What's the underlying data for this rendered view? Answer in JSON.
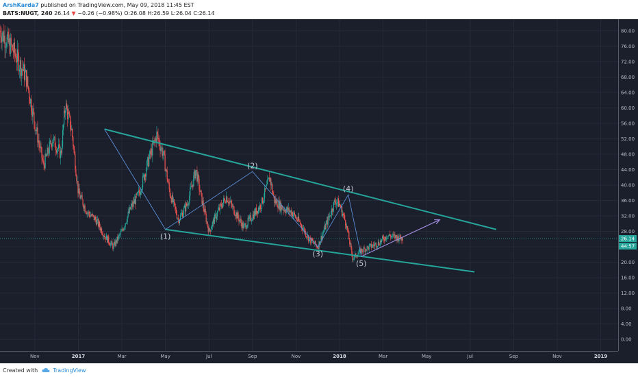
{
  "header": {
    "author": "ArshKarda7",
    "published": "published on TradingView.com, May 09, 2018 11:45 EST",
    "symbol": "BATS:NUGT, 240",
    "last": "26.14",
    "change_arrow": "▼",
    "change": "−0.26 (−0.98%)",
    "ohlc_o": "O:26.08",
    "ohlc_h": "H:26.59",
    "ohlc_l": "L:26.04",
    "ohlc_c": "C:26.14"
  },
  "footer": {
    "created_with": "Created with",
    "brand": "TradingView"
  },
  "colors": {
    "background": "#1b1e2b",
    "trendline": "#26a69a",
    "wave_line": "#5b8fd6",
    "projection_arrow": "#9c8ad8",
    "up_candle": "#26a69a",
    "down_candle": "#ef5350",
    "price_badge": "#26a69a"
  },
  "price_badges": [
    "26.14",
    "44:57"
  ],
  "chart_data": {
    "type": "candlestick",
    "y_ticks": [
      "80.00",
      "76.00",
      "72.00",
      "68.00",
      "64.00",
      "60.00",
      "56.00",
      "52.00",
      "48.00",
      "44.00",
      "40.00",
      "36.00",
      "32.00",
      "28.00",
      "24.00",
      "20.00",
      "16.00",
      "12.00",
      "8.00",
      "4.00",
      "0.00"
    ],
    "x_ticks": [
      "Nov",
      "2017",
      "Mar",
      "May",
      "Jul",
      "Sep",
      "Nov",
      "2018",
      "Mar",
      "May",
      "Jul",
      "Sep",
      "Nov",
      "2019"
    ],
    "year_ticks": [
      "2017",
      "2018",
      "2019"
    ],
    "ylim": [
      -3,
      83
    ],
    "current_price": 26.14,
    "price_path": [
      [
        0,
        80
      ],
      [
        3,
        75
      ],
      [
        6,
        68
      ],
      [
        8,
        56
      ],
      [
        10,
        45
      ],
      [
        12,
        52
      ],
      [
        14,
        48
      ],
      [
        15,
        61
      ],
      [
        16.5,
        54
      ],
      [
        18,
        38
      ],
      [
        20,
        33
      ],
      [
        22,
        31
      ],
      [
        24,
        27
      ],
      [
        26,
        24
      ],
      [
        28,
        28
      ],
      [
        30,
        34
      ],
      [
        32,
        38
      ],
      [
        34,
        46
      ],
      [
        36,
        53
      ],
      [
        37.5,
        48
      ],
      [
        39,
        38
      ],
      [
        41,
        31
      ],
      [
        43,
        35
      ],
      [
        45,
        44
      ],
      [
        46,
        38
      ],
      [
        48,
        28
      ],
      [
        50,
        33
      ],
      [
        52,
        37
      ],
      [
        54,
        33
      ],
      [
        56,
        29
      ],
      [
        58,
        32
      ],
      [
        60,
        35
      ],
      [
        62,
        42
      ],
      [
        63,
        36
      ],
      [
        65,
        34
      ],
      [
        67,
        33
      ],
      [
        69,
        30
      ],
      [
        71,
        26
      ],
      [
        73,
        24
      ],
      [
        75,
        30
      ],
      [
        77,
        36
      ],
      [
        78,
        35
      ],
      [
        79.5,
        30
      ],
      [
        81,
        21
      ],
      [
        83,
        23
      ],
      [
        85,
        24
      ],
      [
        87,
        25
      ],
      [
        89,
        27
      ],
      [
        91,
        26.5
      ],
      [
        92.5,
        26.14
      ]
    ],
    "time_index_ticks": [
      8,
      18,
      28,
      38,
      48,
      58,
      68,
      78,
      88,
      98,
      108,
      118,
      128,
      138
    ],
    "x_domain": [
      0,
      142
    ],
    "trendlines": [
      {
        "name": "upper-trendline",
        "from": [
          24,
          54.5
        ],
        "to": [
          114,
          28.5
        ]
      },
      {
        "name": "lower-trendline",
        "from": [
          38,
          28.5
        ],
        "to": [
          109,
          17.5
        ]
      }
    ],
    "wave_points": [
      {
        "label": "",
        "t": 24,
        "price": 54.5
      },
      {
        "label": "(1)",
        "t": 38,
        "price": 28.5
      },
      {
        "label": "(2)",
        "t": 58,
        "price": 43.5
      },
      {
        "label": "(3)",
        "t": 73,
        "price": 24.0
      },
      {
        "label": "(4)",
        "t": 80,
        "price": 37.5
      },
      {
        "label": "(5)",
        "t": 83,
        "price": 21.5
      }
    ],
    "projection": {
      "from": [
        83,
        21.5
      ],
      "to": [
        101,
        31.0
      ]
    }
  }
}
